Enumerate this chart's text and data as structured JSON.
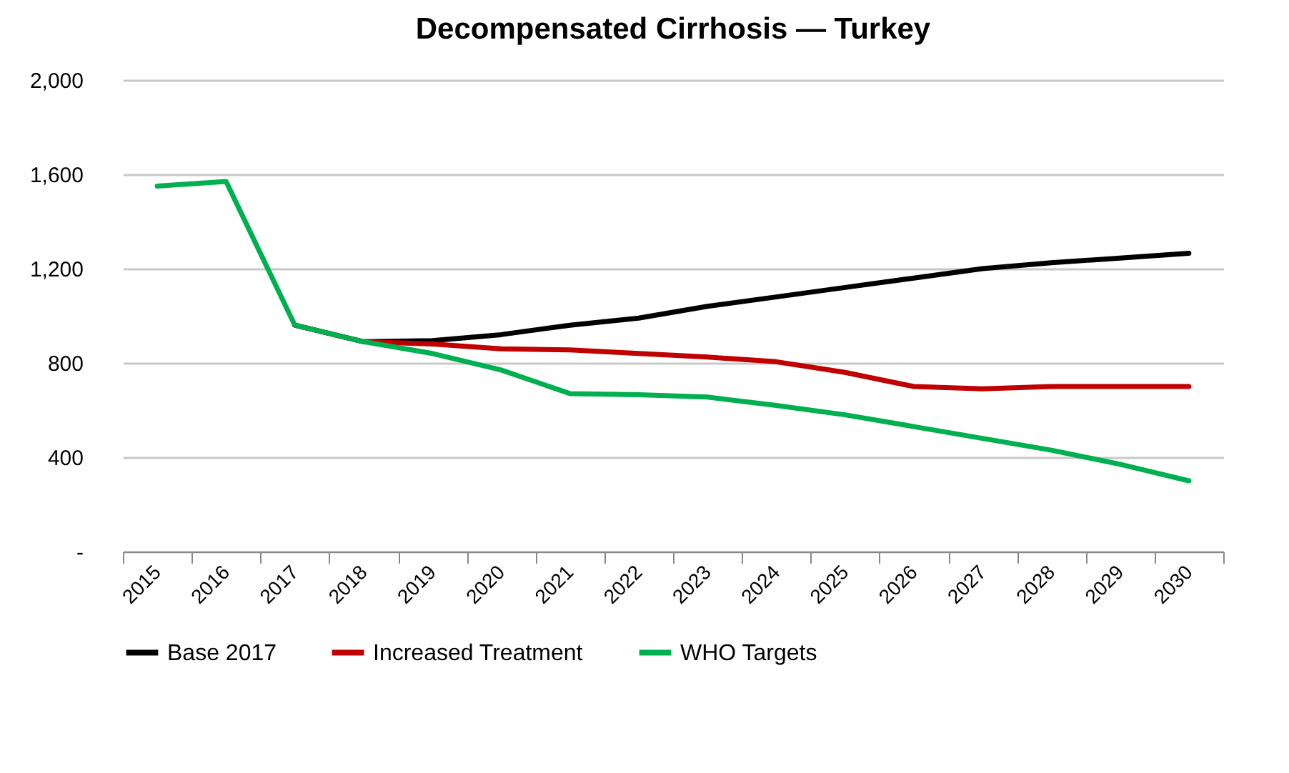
{
  "chart_data": {
    "type": "line",
    "title": "Decompensated Cirrhosis — Turkey",
    "categories": [
      "2015",
      "2016",
      "2017",
      "2018",
      "2019",
      "2020",
      "2021",
      "2022",
      "2023",
      "2024",
      "2025",
      "2026",
      "2027",
      "2028",
      "2029",
      "2030"
    ],
    "series": [
      {
        "name": "Base 2017",
        "color": "#000000",
        "values": [
          null,
          null,
          960,
          890,
          895,
          920,
          960,
          990,
          1040,
          1080,
          1120,
          1160,
          1200,
          1225,
          1245,
          1265
        ]
      },
      {
        "name": "Increased Treatment",
        "color": "#c00000",
        "values": [
          null,
          null,
          960,
          890,
          880,
          860,
          855,
          840,
          825,
          805,
          760,
          700,
          690,
          700,
          700,
          700
        ]
      },
      {
        "name": "WHO Targets",
        "color": "#00b050",
        "values": [
          1550,
          1570,
          960,
          890,
          840,
          770,
          670,
          665,
          655,
          620,
          580,
          530,
          480,
          430,
          370,
          300
        ]
      }
    ],
    "ylim": [
      0,
      2000
    ],
    "yticks": [
      {
        "value": 0,
        "label": "-"
      },
      {
        "value": 400,
        "label": "400"
      },
      {
        "value": 800,
        "label": "800"
      },
      {
        "value": 1200,
        "label": "1,200"
      },
      {
        "value": 1600,
        "label": "1,600"
      },
      {
        "value": 2000,
        "label": "2,000"
      }
    ],
    "grid": "y",
    "legend": "bottom",
    "marker": "none",
    "line_style": "solid"
  }
}
